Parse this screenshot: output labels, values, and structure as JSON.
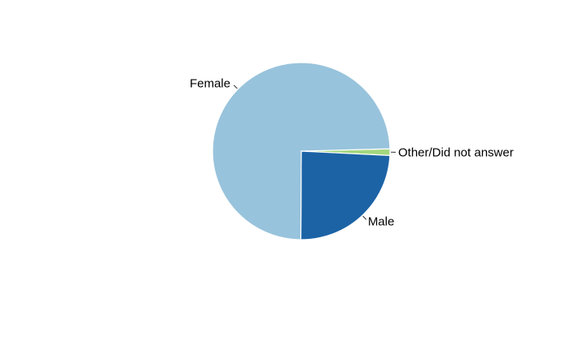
{
  "chart_data": {
    "type": "pie",
    "title": "",
    "legend": "none",
    "slices": [
      {
        "label": "Female",
        "value": 74.5,
        "color": "#98c3dc"
      },
      {
        "label": "Male",
        "value": 24.3,
        "color": "#1c63a6"
      },
      {
        "label": "Other/Did not answer",
        "value": 1.2,
        "color": "#a3d77f"
      }
    ]
  }
}
